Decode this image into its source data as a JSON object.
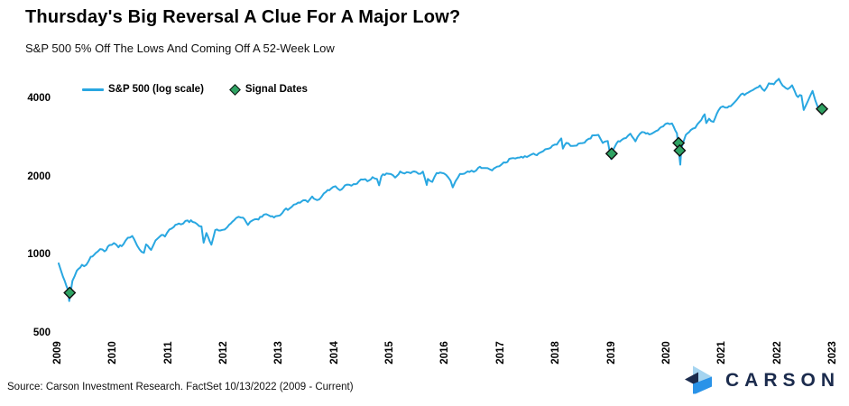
{
  "header": {
    "title": "Thursday's Big Reversal A Clue For A Major Low?",
    "subtitle": "S&P 500 5% Off The Lows And Coming Off A 52-Week Low"
  },
  "legend": {
    "series_label": "S&P 500 (log scale)",
    "signal_label": "Signal Dates"
  },
  "footer": {
    "source": "Source: Carson Investment Research. FactSet 10/13/2022 (2009 - Current)",
    "brand": "CARSON"
  },
  "colors": {
    "line": "#29A7E1",
    "signal_fill": "#2FA363",
    "signal_stroke": "#111111",
    "brand_navy": "#1B2B4D",
    "brand_pale_blue": "#A5D4F0",
    "brand_mid_blue": "#2A93E8"
  },
  "chart_data": {
    "type": "line",
    "title": "Thursday's Big Reversal A Clue For A Major Low?",
    "subtitle": "S&P 500 5% Off The Lows And Coming Off A 52-Week Low",
    "yscale": "log",
    "xlabel": "",
    "ylabel": "",
    "ylim": [
      500,
      5200
    ],
    "xlim": [
      2009,
      2023
    ],
    "grid": false,
    "legend_position": "top-left",
    "legend": [
      "S&P 500 (log scale)",
      "Signal Dates"
    ],
    "y_ticks": [
      4000,
      2000,
      1000,
      500
    ],
    "x_ticks": [
      2009,
      2010,
      2011,
      2012,
      2013,
      2014,
      2015,
      2016,
      2017,
      2018,
      2019,
      2020,
      2021,
      2022,
      2023
    ],
    "series": [
      {
        "name": "S&P 500 (log scale)",
        "points": [
          [
            2009.0,
            931
          ],
          [
            2009.08,
            826
          ],
          [
            2009.17,
            735
          ],
          [
            2009.19,
            666
          ],
          [
            2009.25,
            798
          ],
          [
            2009.33,
            873
          ],
          [
            2009.42,
            919
          ],
          [
            2009.5,
            919
          ],
          [
            2009.58,
            987
          ],
          [
            2009.67,
            1021
          ],
          [
            2009.75,
            1057
          ],
          [
            2009.83,
            1036
          ],
          [
            2009.92,
            1096
          ],
          [
            2010.0,
            1115
          ],
          [
            2010.08,
            1074
          ],
          [
            2010.17,
            1104
          ],
          [
            2010.25,
            1169
          ],
          [
            2010.33,
            1187
          ],
          [
            2010.42,
            1089
          ],
          [
            2010.5,
            1031
          ],
          [
            2010.54,
            1023
          ],
          [
            2010.58,
            1102
          ],
          [
            2010.67,
            1049
          ],
          [
            2010.75,
            1141
          ],
          [
            2010.83,
            1183
          ],
          [
            2010.92,
            1181
          ],
          [
            2011.0,
            1258
          ],
          [
            2011.08,
            1286
          ],
          [
            2011.17,
            1327
          ],
          [
            2011.25,
            1326
          ],
          [
            2011.33,
            1364
          ],
          [
            2011.42,
            1345
          ],
          [
            2011.5,
            1321
          ],
          [
            2011.58,
            1292
          ],
          [
            2011.62,
            1119
          ],
          [
            2011.67,
            1219
          ],
          [
            2011.73,
            1131
          ],
          [
            2011.76,
            1099
          ],
          [
            2011.83,
            1253
          ],
          [
            2011.92,
            1247
          ],
          [
            2012.0,
            1258
          ],
          [
            2012.08,
            1312
          ],
          [
            2012.17,
            1366
          ],
          [
            2012.25,
            1408
          ],
          [
            2012.33,
            1398
          ],
          [
            2012.42,
            1310
          ],
          [
            2012.5,
            1362
          ],
          [
            2012.58,
            1379
          ],
          [
            2012.67,
            1407
          ],
          [
            2012.75,
            1441
          ],
          [
            2012.83,
            1412
          ],
          [
            2012.92,
            1416
          ],
          [
            2013.0,
            1426
          ],
          [
            2013.08,
            1498
          ],
          [
            2013.17,
            1515
          ],
          [
            2013.25,
            1569
          ],
          [
            2013.33,
            1598
          ],
          [
            2013.42,
            1631
          ],
          [
            2013.5,
            1606
          ],
          [
            2013.58,
            1686
          ],
          [
            2013.67,
            1633
          ],
          [
            2013.75,
            1682
          ],
          [
            2013.83,
            1757
          ],
          [
            2013.92,
            1806
          ],
          [
            2014.0,
            1848
          ],
          [
            2014.08,
            1783
          ],
          [
            2014.17,
            1859
          ],
          [
            2014.25,
            1872
          ],
          [
            2014.33,
            1884
          ],
          [
            2014.42,
            1924
          ],
          [
            2014.5,
            1960
          ],
          [
            2014.58,
            1931
          ],
          [
            2014.67,
            2003
          ],
          [
            2014.75,
            1972
          ],
          [
            2014.79,
            1862
          ],
          [
            2014.83,
            2018
          ],
          [
            2014.92,
            2068
          ],
          [
            2015.0,
            2059
          ],
          [
            2015.08,
            1995
          ],
          [
            2015.17,
            2105
          ],
          [
            2015.25,
            2068
          ],
          [
            2015.33,
            2086
          ],
          [
            2015.42,
            2107
          ],
          [
            2015.5,
            2063
          ],
          [
            2015.58,
            2104
          ],
          [
            2015.65,
            1868
          ],
          [
            2015.67,
            1972
          ],
          [
            2015.75,
            1920
          ],
          [
            2015.83,
            2079
          ],
          [
            2015.92,
            2080
          ],
          [
            2016.0,
            2044
          ],
          [
            2016.08,
            1940
          ],
          [
            2016.12,
            1829
          ],
          [
            2016.17,
            1932
          ],
          [
            2016.25,
            2060
          ],
          [
            2016.33,
            2065
          ],
          [
            2016.42,
            2097
          ],
          [
            2016.5,
            2099
          ],
          [
            2016.58,
            2174
          ],
          [
            2016.67,
            2171
          ],
          [
            2016.75,
            2168
          ],
          [
            2016.83,
            2126
          ],
          [
            2016.92,
            2199
          ],
          [
            2017.0,
            2239
          ],
          [
            2017.08,
            2279
          ],
          [
            2017.17,
            2364
          ],
          [
            2017.25,
            2363
          ],
          [
            2017.33,
            2384
          ],
          [
            2017.42,
            2412
          ],
          [
            2017.5,
            2423
          ],
          [
            2017.58,
            2470
          ],
          [
            2017.67,
            2472
          ],
          [
            2017.75,
            2519
          ],
          [
            2017.83,
            2575
          ],
          [
            2017.92,
            2648
          ],
          [
            2018.0,
            2674
          ],
          [
            2018.08,
            2824
          ],
          [
            2018.11,
            2581
          ],
          [
            2018.17,
            2714
          ],
          [
            2018.25,
            2641
          ],
          [
            2018.33,
            2648
          ],
          [
            2018.42,
            2705
          ],
          [
            2018.5,
            2718
          ],
          [
            2018.58,
            2816
          ],
          [
            2018.67,
            2902
          ],
          [
            2018.75,
            2914
          ],
          [
            2018.83,
            2712
          ],
          [
            2018.92,
            2760
          ],
          [
            2018.98,
            2351
          ],
          [
            2019.0,
            2507
          ],
          [
            2019.08,
            2704
          ],
          [
            2019.17,
            2784
          ],
          [
            2019.25,
            2834
          ],
          [
            2019.33,
            2946
          ],
          [
            2019.42,
            2752
          ],
          [
            2019.5,
            2942
          ],
          [
            2019.58,
            2980
          ],
          [
            2019.67,
            2926
          ],
          [
            2019.75,
            2977
          ],
          [
            2019.83,
            3038
          ],
          [
            2019.92,
            3141
          ],
          [
            2020.0,
            3231
          ],
          [
            2020.08,
            3226
          ],
          [
            2020.17,
            2954
          ],
          [
            2020.23,
            2237
          ],
          [
            2020.25,
            2585
          ],
          [
            2020.33,
            2912
          ],
          [
            2020.42,
            3044
          ],
          [
            2020.5,
            3100
          ],
          [
            2020.58,
            3271
          ],
          [
            2020.67,
            3500
          ],
          [
            2020.7,
            3237
          ],
          [
            2020.75,
            3363
          ],
          [
            2020.83,
            3270
          ],
          [
            2020.92,
            3622
          ],
          [
            2021.0,
            3756
          ],
          [
            2021.08,
            3714
          ],
          [
            2021.17,
            3811
          ],
          [
            2021.25,
            3973
          ],
          [
            2021.33,
            4181
          ],
          [
            2021.42,
            4204
          ],
          [
            2021.5,
            4298
          ],
          [
            2021.58,
            4395
          ],
          [
            2021.67,
            4523
          ],
          [
            2021.75,
            4308
          ],
          [
            2021.83,
            4605
          ],
          [
            2021.92,
            4567
          ],
          [
            2022.0,
            4766
          ],
          [
            2022.01,
            4797
          ],
          [
            2022.08,
            4516
          ],
          [
            2022.17,
            4374
          ],
          [
            2022.25,
            4530
          ],
          [
            2022.33,
            4132
          ],
          [
            2022.42,
            4132
          ],
          [
            2022.46,
            3637
          ],
          [
            2022.5,
            3785
          ],
          [
            2022.58,
            4130
          ],
          [
            2022.62,
            4305
          ],
          [
            2022.67,
            3955
          ],
          [
            2022.75,
            3586
          ],
          [
            2022.78,
            3577
          ],
          [
            2022.79,
            3669
          ]
        ]
      }
    ],
    "signals": {
      "name": "Signal Dates",
      "points": [
        [
          2009.2,
          717
        ],
        [
          2018.99,
          2467
        ],
        [
          2020.2,
          2711
        ],
        [
          2020.22,
          2537
        ],
        [
          2022.79,
          3669
        ]
      ]
    }
  }
}
